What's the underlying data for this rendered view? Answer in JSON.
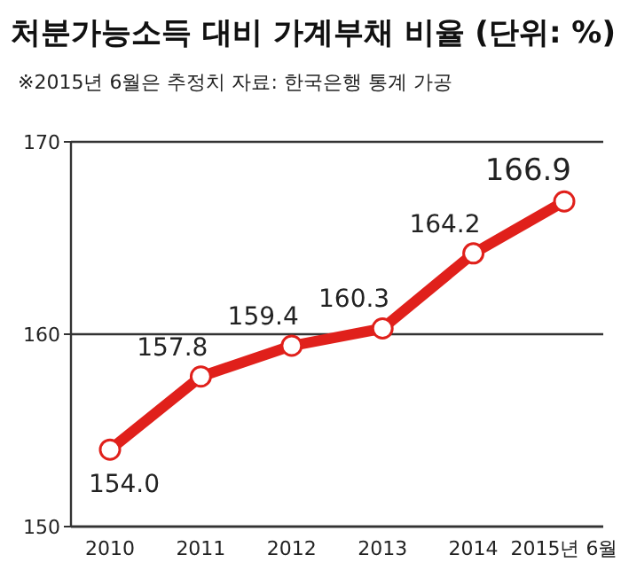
{
  "chart_data": {
    "type": "line",
    "title": "처분가능소득 대비 가계부채 비율 (단위: %)",
    "subtitle": "※2015년 6월은 추정치  자료: 한국은행 통계 가공",
    "categories": [
      "2010",
      "2011",
      "2012",
      "2013",
      "2014",
      "2015년 6월"
    ],
    "series": [
      {
        "color": "#e0201b",
        "values": [
          154.0,
          157.8,
          159.4,
          160.3,
          164.2,
          166.9
        ],
        "value_labels": [
          "154.0",
          "157.8",
          "159.4",
          "160.3",
          "164.2",
          "166.9"
        ]
      }
    ],
    "ylim": [
      150,
      170
    ],
    "yticks": [
      150,
      160,
      170
    ],
    "grid": "y",
    "marker": "circle",
    "line_style": "solid"
  }
}
